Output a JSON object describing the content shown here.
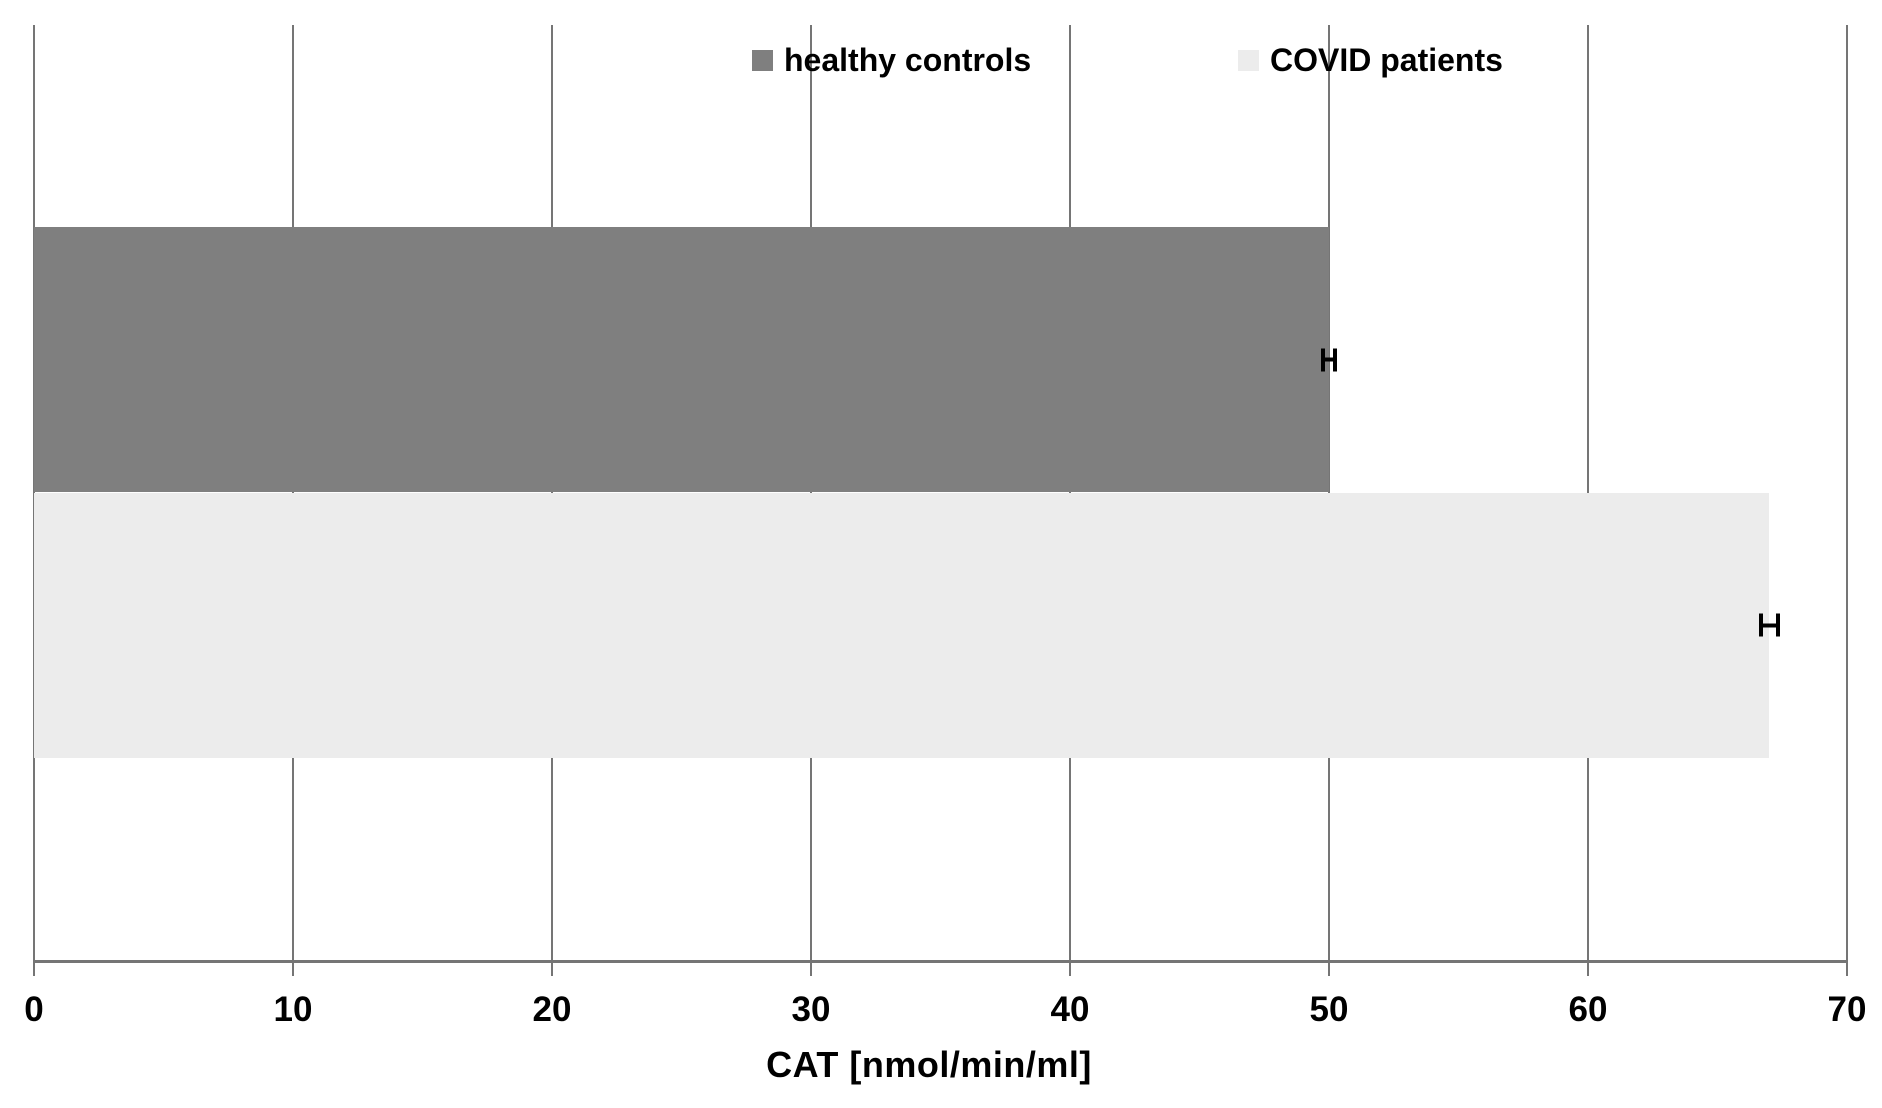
{
  "chart_data": {
    "type": "bar",
    "orientation": "horizontal",
    "title": "",
    "xlabel": "CAT [nmol/min/ml]",
    "ylabel": "",
    "xlim": [
      0,
      70
    ],
    "x_ticks": [
      0,
      10,
      20,
      30,
      40,
      50,
      60,
      70
    ],
    "x_tick_labels": [
      "0",
      "10",
      "20",
      "30",
      "40",
      "50",
      "60",
      "70"
    ],
    "grid": true,
    "legend_position": "top-center",
    "series": [
      {
        "name": "healthy controls",
        "values": [
          50
        ],
        "error_plus_minus": [
          0.3
        ],
        "color": "#7F7F7F"
      },
      {
        "name": "COVID patients",
        "values": [
          67
        ],
        "error_plus_minus": [
          0.4
        ],
        "color": "#ECECEC"
      }
    ],
    "error_bar_color": "#000000",
    "gridline_color": "#757575",
    "axis_color": "#757575",
    "text_color": "#000000",
    "background_color": "#FFFFFF"
  }
}
